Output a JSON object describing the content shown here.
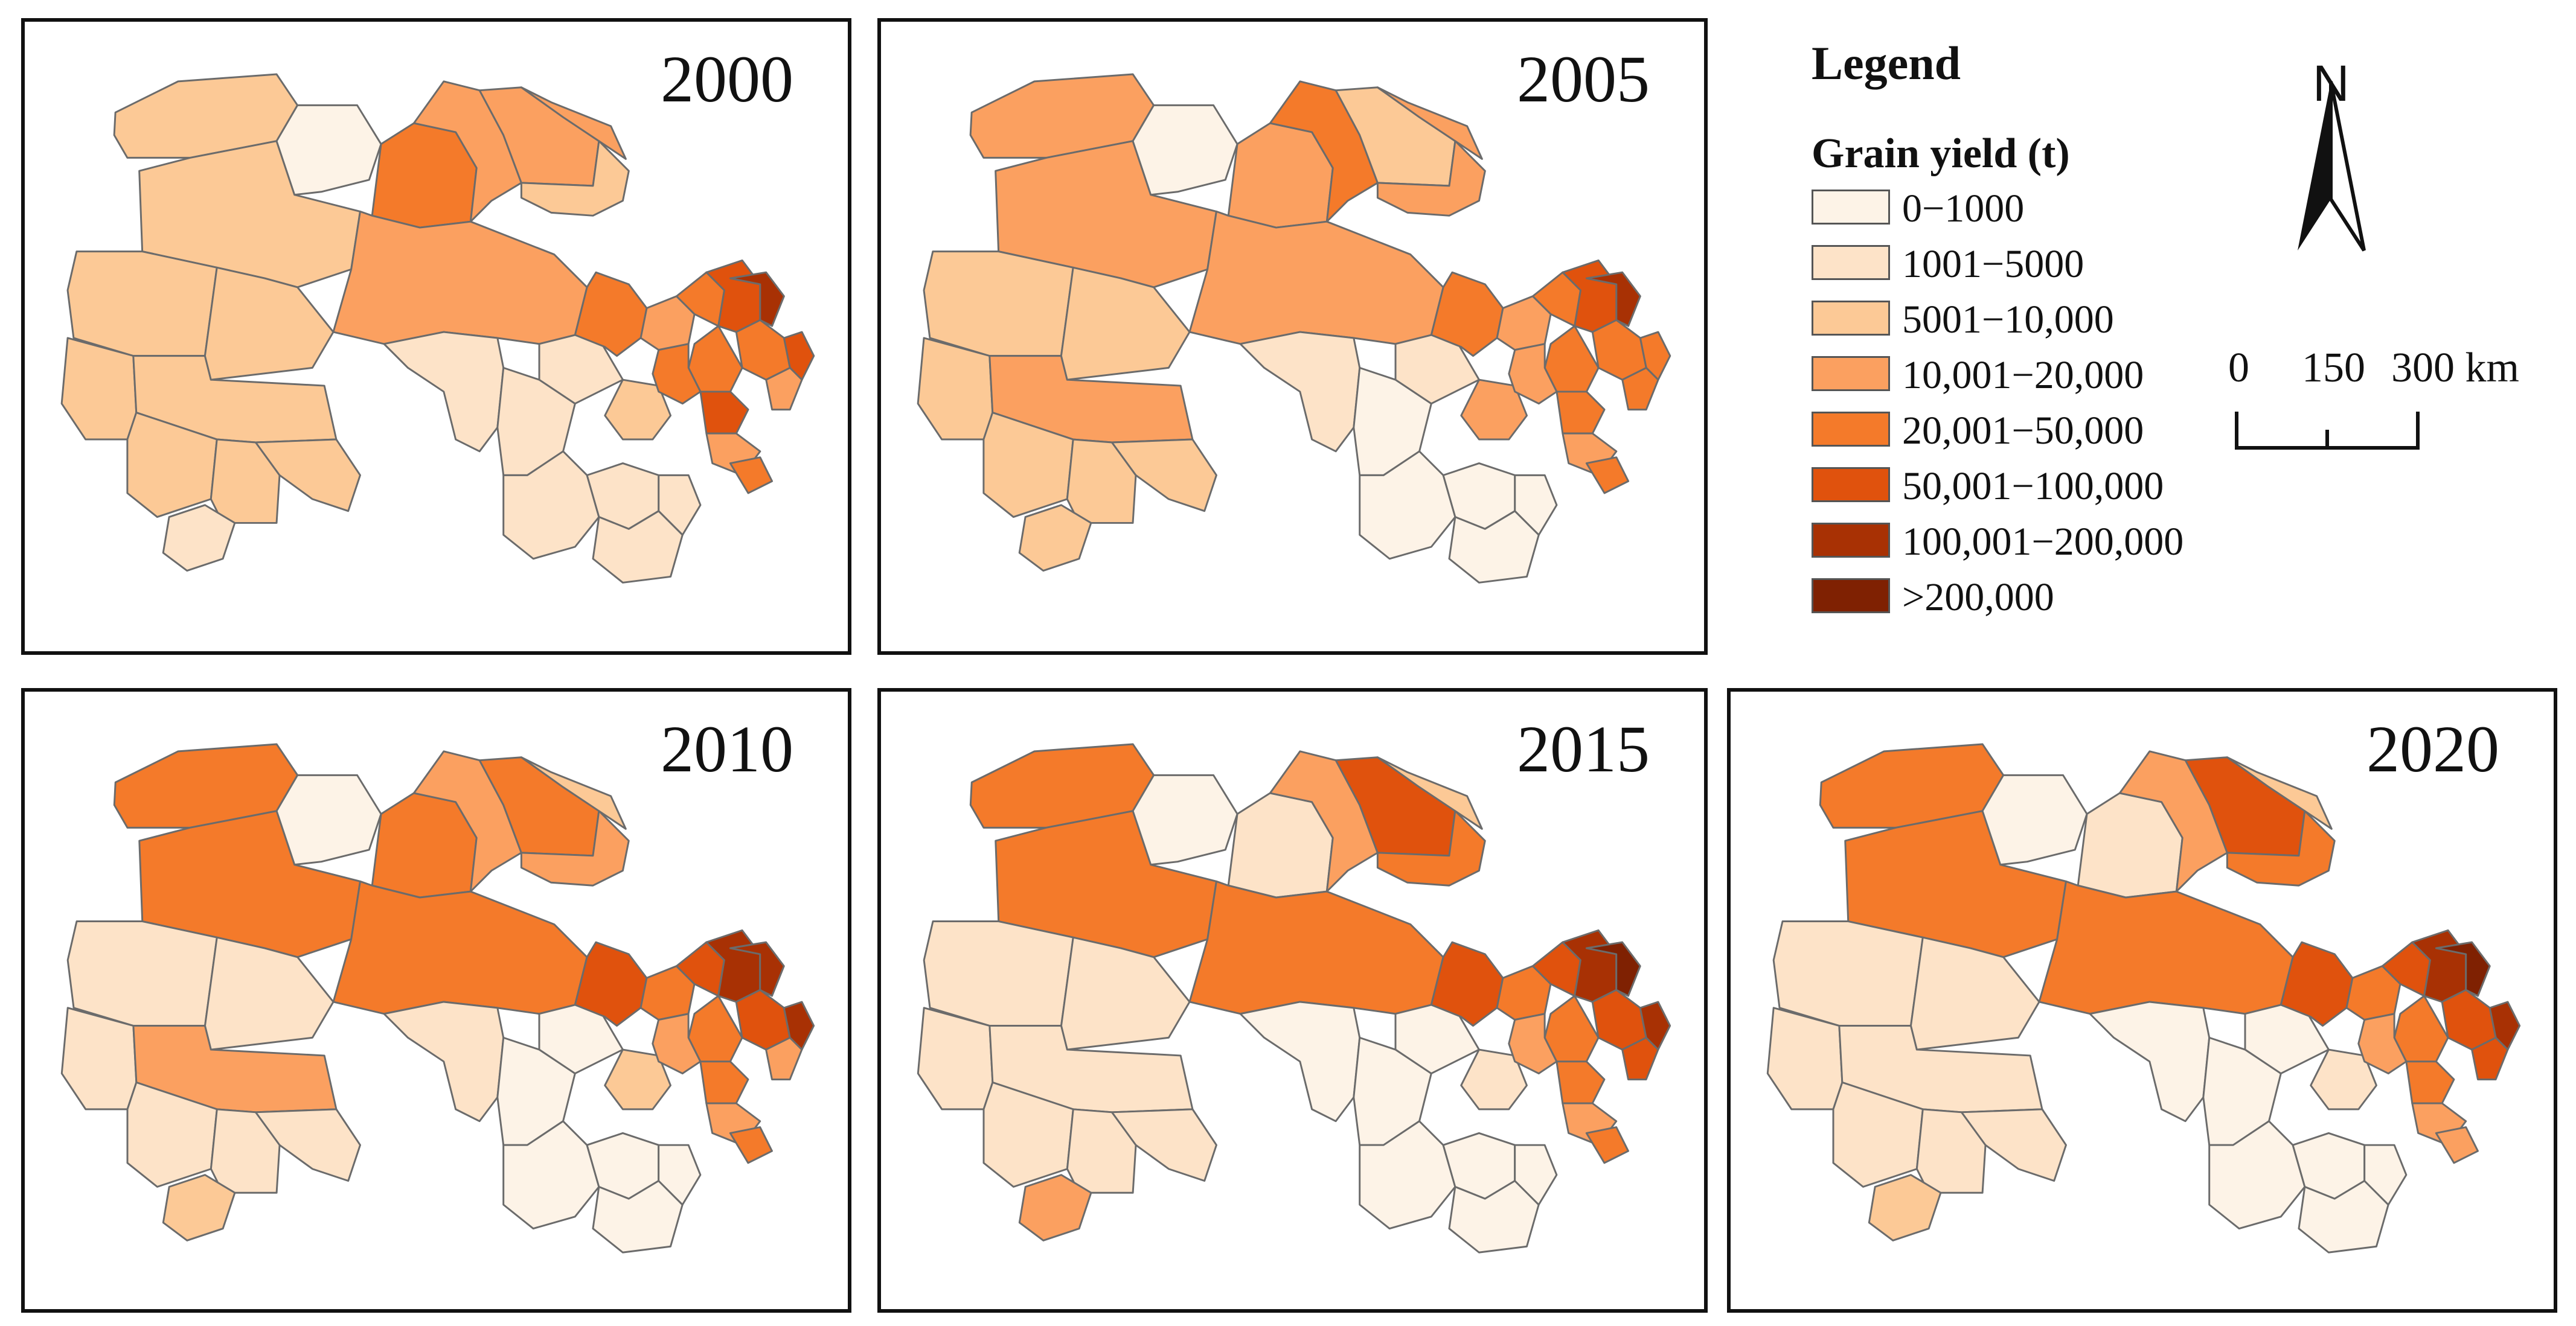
{
  "panels": [
    {
      "year": "2000",
      "levels": [
        2,
        2,
        0,
        4,
        3,
        3,
        3,
        3,
        2,
        2,
        2,
        2,
        2,
        2,
        2,
        2,
        1,
        1,
        1,
        1,
        2,
        1,
        1,
        1,
        1,
        4,
        3,
        4,
        5,
        4,
        6,
        5,
        4,
        4,
        5,
        3,
        3,
        4
      ]
    },
    {
      "year": "2005",
      "levels": [
        3,
        3,
        0,
        3,
        3,
        4,
        2,
        3,
        3,
        2,
        2,
        3,
        2,
        2,
        2,
        2,
        2,
        1,
        0,
        1,
        3,
        0,
        0,
        0,
        0,
        4,
        3,
        4,
        5,
        4,
        6,
        4,
        4,
        3,
        4,
        4,
        3,
        4
      ]
    },
    {
      "year": "2010",
      "levels": [
        4,
        4,
        0,
        4,
        4,
        3,
        4,
        2,
        3,
        1,
        1,
        3,
        1,
        1,
        1,
        1,
        2,
        1,
        0,
        0,
        2,
        0,
        0,
        0,
        0,
        5,
        4,
        5,
        6,
        5,
        6,
        6,
        4,
        3,
        4,
        3,
        3,
        4
      ]
    },
    {
      "year": "2015",
      "levels": [
        4,
        4,
        0,
        1,
        4,
        3,
        5,
        2,
        4,
        1,
        1,
        1,
        1,
        1,
        1,
        1,
        3,
        0,
        0,
        0,
        1,
        0,
        0,
        0,
        0,
        5,
        4,
        5,
        6,
        5,
        7,
        6,
        4,
        3,
        4,
        5,
        3,
        4
      ]
    },
    {
      "year": "2020",
      "levels": [
        4,
        4,
        0,
        1,
        4,
        3,
        5,
        2,
        4,
        1,
        1,
        1,
        1,
        1,
        1,
        1,
        2,
        0,
        0,
        0,
        1,
        0,
        0,
        0,
        0,
        5,
        4,
        5,
        6,
        5,
        7,
        6,
        4,
        3,
        4,
        5,
        3,
        3
      ]
    }
  ],
  "legend": {
    "title": "Legend",
    "subtitle": "Grain yield (t)",
    "classes": [
      {
        "label": "0−1000",
        "color": "#fdf3e7"
      },
      {
        "label": "1001−5000",
        "color": "#fde3c8"
      },
      {
        "label": "5001−10,000",
        "color": "#fcc996"
      },
      {
        "label": "10,001−20,000",
        "color": "#fba060"
      },
      {
        "label": "20,001−50,000",
        "color": "#f47a2a"
      },
      {
        "label": "50,001−100,000",
        "color": "#e0520d"
      },
      {
        "label": "100,001−200,000",
        "color": "#a83104"
      },
      {
        "label": ">200,000",
        "color": "#7f2102"
      }
    ]
  },
  "north_arrow": {
    "label": "N"
  },
  "scale_bar": {
    "labels": [
      "0",
      "150",
      "300 km"
    ]
  },
  "colors": {
    "border": "#111111",
    "region_stroke": "#6b6b6b"
  }
}
